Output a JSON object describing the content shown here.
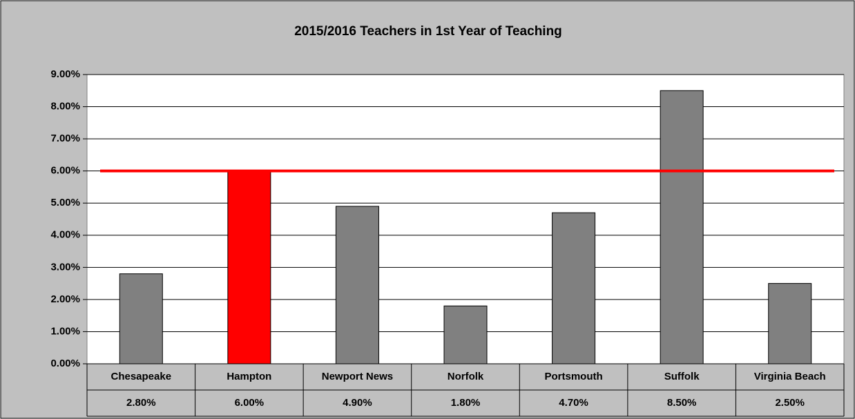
{
  "chart_data": {
    "type": "bar",
    "title": "2015/2016 Teachers in 1st Year of Teaching",
    "categories": [
      "Chesapeake",
      "Hampton",
      "Newport News",
      "Norfolk",
      "Portsmouth",
      "Suffolk",
      "Virginia Beach"
    ],
    "values": [
      2.8,
      6.0,
      4.9,
      1.8,
      4.7,
      8.5,
      2.5
    ],
    "value_labels": [
      "2.80%",
      "6.00%",
      "4.90%",
      "1.80%",
      "4.70%",
      "8.50%",
      "2.50%"
    ],
    "colors": [
      "#808080",
      "#ff0000",
      "#808080",
      "#808080",
      "#808080",
      "#808080",
      "#808080"
    ],
    "reference_line": {
      "value": 6.0,
      "color": "#ff0000"
    },
    "ylim": [
      0,
      9
    ],
    "yticks": [
      {
        "value": 0,
        "label": "0.00%"
      },
      {
        "value": 1,
        "label": "1.00%"
      },
      {
        "value": 2,
        "label": "2.00%"
      },
      {
        "value": 3,
        "label": "3.00%"
      },
      {
        "value": 4,
        "label": "4.00%"
      },
      {
        "value": 5,
        "label": "5.00%"
      },
      {
        "value": 6,
        "label": "6.00%"
      },
      {
        "value": 7,
        "label": "7.00%"
      },
      {
        "value": 8,
        "label": "8.00%"
      },
      {
        "value": 9,
        "label": "9.00%"
      }
    ],
    "grid": true
  }
}
